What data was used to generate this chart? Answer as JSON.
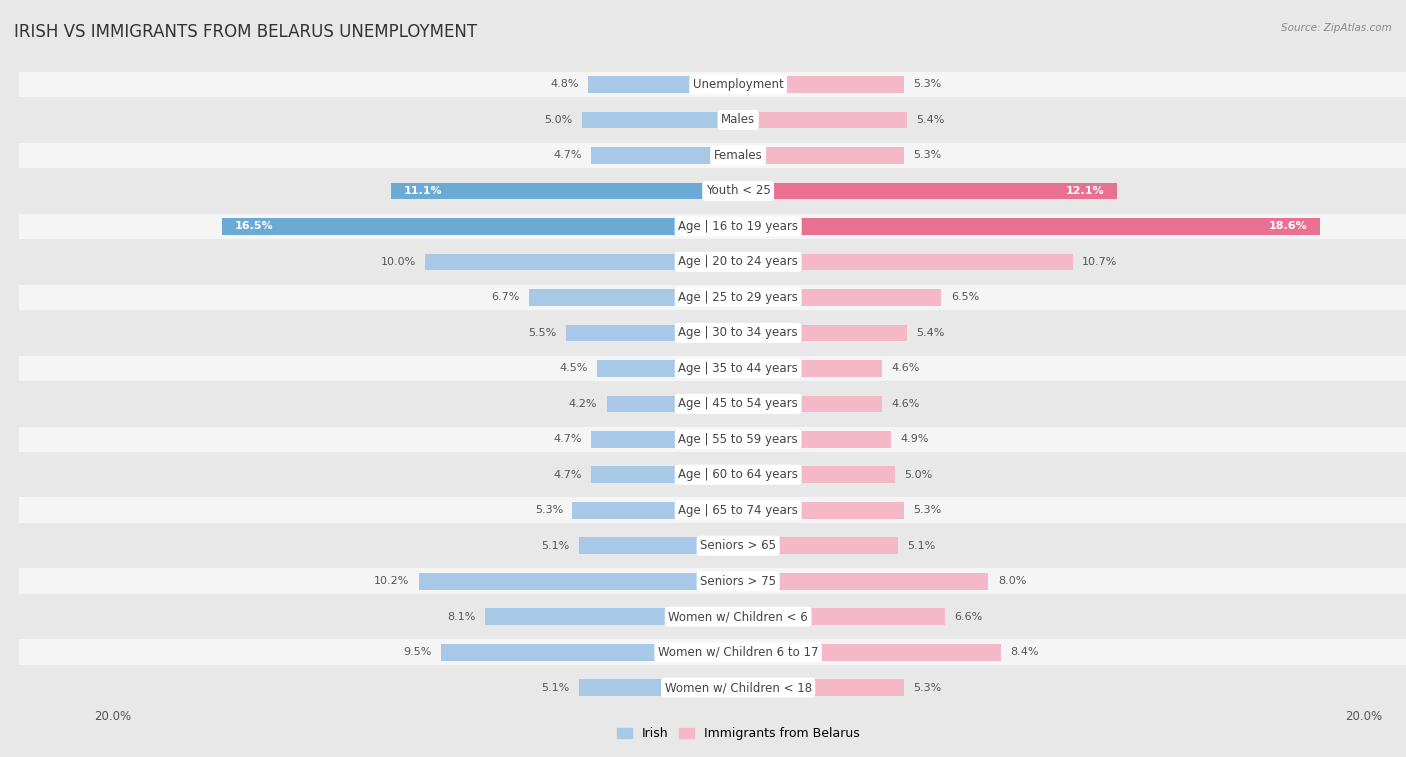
{
  "title": "IRISH VS IMMIGRANTS FROM BELARUS UNEMPLOYMENT",
  "source": "Source: ZipAtlas.com",
  "categories": [
    "Unemployment",
    "Males",
    "Females",
    "Youth < 25",
    "Age | 16 to 19 years",
    "Age | 20 to 24 years",
    "Age | 25 to 29 years",
    "Age | 30 to 34 years",
    "Age | 35 to 44 years",
    "Age | 45 to 54 years",
    "Age | 55 to 59 years",
    "Age | 60 to 64 years",
    "Age | 65 to 74 years",
    "Seniors > 65",
    "Seniors > 75",
    "Women w/ Children < 6",
    "Women w/ Children 6 to 17",
    "Women w/ Children < 18"
  ],
  "irish_values": [
    4.8,
    5.0,
    4.7,
    11.1,
    16.5,
    10.0,
    6.7,
    5.5,
    4.5,
    4.2,
    4.7,
    4.7,
    5.3,
    5.1,
    10.2,
    8.1,
    9.5,
    5.1
  ],
  "belarus_values": [
    5.3,
    5.4,
    5.3,
    12.1,
    18.6,
    10.7,
    6.5,
    5.4,
    4.6,
    4.6,
    4.9,
    5.0,
    5.3,
    5.1,
    8.0,
    6.6,
    8.4,
    5.3
  ],
  "irish_color": "#a8c8e8",
  "belarus_color": "#f4b8c8",
  "irish_highlight_color": "#6aaad4",
  "belarus_highlight_color": "#e87090",
  "axis_max": 20.0,
  "background_color": "#e8e8e8",
  "row_bg_color": "#f5f5f5",
  "row_alt_color": "#e8e8e8",
  "label_bg_color": "#ffffff",
  "legend_irish": "Irish",
  "legend_belarus": "Immigrants from Belarus",
  "title_fontsize": 12,
  "label_fontsize": 8.5,
  "value_fontsize": 8,
  "highlight_rows": [
    3,
    4
  ]
}
